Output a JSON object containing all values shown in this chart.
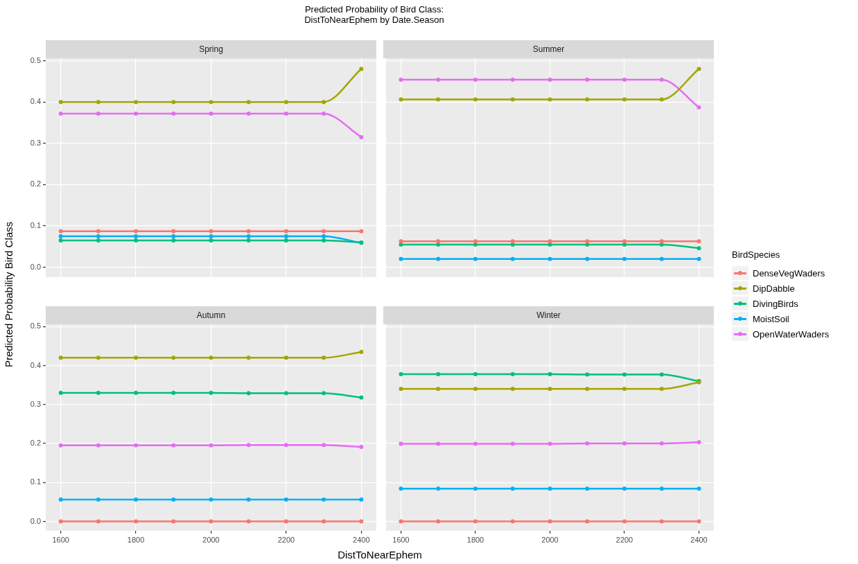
{
  "chart_data": [
    {
      "type": "line",
      "title": "Spring",
      "annotations": [
        "Predicted Probability of Bird Class:\nDistToNearEphem by Date.Season"
      ],
      "ylabel": "Predicted Probability Bird Class",
      "x": [
        1600,
        1700,
        1800,
        1900,
        2000,
        2100,
        2200,
        2300,
        2400
      ],
      "xlim": [
        1560,
        2440
      ],
      "xticks": [
        1600,
        1800,
        2000,
        2200,
        2400
      ],
      "ylim": [
        -0.024,
        0.506
      ],
      "yticks": [
        {
          "value": 0,
          "label": "0.0"
        },
        0.1,
        0.2,
        0.3,
        0.4,
        0.5
      ],
      "tick_labels": "y",
      "grid": true,
      "marker": "circle",
      "line_style": "solid",
      "series": [
        {
          "color": "#f8766d",
          "values": [
            0.087,
            0.087,
            0.087,
            0.087,
            0.087,
            0.087,
            0.087,
            0.087,
            0.087
          ]
        },
        {
          "color": "#a3a500",
          "values": [
            0.4,
            0.4,
            0.4,
            0.4,
            0.4,
            0.4,
            0.4,
            0.4,
            0.48
          ]
        },
        {
          "color": "#00bf7d",
          "values": [
            0.065,
            0.065,
            0.065,
            0.065,
            0.065,
            0.065,
            0.065,
            0.065,
            0.06
          ]
        },
        {
          "color": "#00b0f6",
          "values": [
            0.075,
            0.075,
            0.075,
            0.075,
            0.075,
            0.075,
            0.075,
            0.075,
            0.059
          ]
        },
        {
          "color": "#e76bf3",
          "values": [
            0.372,
            0.372,
            0.372,
            0.372,
            0.372,
            0.372,
            0.372,
            0.372,
            0.315
          ]
        }
      ]
    },
    {
      "type": "line",
      "title": "Summer",
      "legend": "right",
      "legend_title": "BirdSpecies",
      "x": [
        1600,
        1700,
        1800,
        1900,
        2000,
        2100,
        2200,
        2300,
        2400
      ],
      "xlim": [
        1560,
        2440
      ],
      "xticks": [
        1600,
        1800,
        2000,
        2200,
        2400
      ],
      "ylim": [
        -0.024,
        0.506
      ],
      "yticks": [
        0,
        0.1,
        0.2,
        0.3,
        0.4,
        0.5
      ],
      "tick_labels": false,
      "grid": true,
      "marker": "circle",
      "line_style": "solid",
      "series": [
        {
          "name": "DenseVegWaders",
          "color": "#f8766d",
          "values": [
            0.063,
            0.063,
            0.063,
            0.063,
            0.063,
            0.063,
            0.063,
            0.063,
            0.063
          ]
        },
        {
          "name": "DipDabble",
          "color": "#a3a500",
          "values": [
            0.406,
            0.406,
            0.406,
            0.406,
            0.406,
            0.406,
            0.406,
            0.406,
            0.48
          ]
        },
        {
          "name": "DivingBirds",
          "color": "#00bf7d",
          "values": [
            0.055,
            0.055,
            0.055,
            0.055,
            0.055,
            0.055,
            0.055,
            0.055,
            0.046
          ]
        },
        {
          "name": "MoistSoil",
          "color": "#00b0f6",
          "values": [
            0.02,
            0.02,
            0.02,
            0.02,
            0.02,
            0.02,
            0.02,
            0.02,
            0.02
          ]
        },
        {
          "name": "OpenWaterWaders",
          "color": "#e76bf3",
          "values": [
            0.454,
            0.454,
            0.454,
            0.454,
            0.454,
            0.454,
            0.454,
            0.454,
            0.387
          ]
        }
      ]
    },
    {
      "type": "line",
      "title": "Autumn",
      "xlabel": "DistToNearEphem",
      "x": [
        1600,
        1700,
        1800,
        1900,
        2000,
        2100,
        2200,
        2300,
        2400
      ],
      "xlim": [
        1560,
        2440
      ],
      "xticks": [
        1600,
        1800,
        2000,
        2200,
        2400
      ],
      "ylim": [
        -0.024,
        0.506
      ],
      "yticks": [
        {
          "value": 0,
          "label": "0.0"
        },
        0.1,
        0.2,
        0.3,
        0.4,
        0.5
      ],
      "grid": true,
      "marker": "circle",
      "line_style": "solid",
      "series": [
        {
          "color": "#f8766d",
          "values": [
            0,
            0,
            0,
            0,
            0,
            0,
            0,
            0,
            0
          ]
        },
        {
          "color": "#a3a500",
          "values": [
            0.42,
            0.42,
            0.42,
            0.42,
            0.42,
            0.42,
            0.42,
            0.42,
            0.435
          ]
        },
        {
          "color": "#00bf7d",
          "values": [
            0.33,
            0.33,
            0.33,
            0.33,
            0.33,
            0.329,
            0.329,
            0.329,
            0.318
          ]
        },
        {
          "color": "#00b0f6",
          "values": [
            0.056,
            0.056,
            0.056,
            0.056,
            0.056,
            0.056,
            0.056,
            0.056,
            0.056
          ]
        },
        {
          "color": "#e76bf3",
          "values": [
            0.195,
            0.195,
            0.195,
            0.195,
            0.195,
            0.196,
            0.196,
            0.196,
            0.191
          ]
        }
      ]
    },
    {
      "type": "line",
      "title": "Winter",
      "x": [
        1600,
        1700,
        1800,
        1900,
        2000,
        2100,
        2200,
        2300,
        2400
      ],
      "xlim": [
        1560,
        2440
      ],
      "xticks": [
        1600,
        1800,
        2000,
        2200,
        2400
      ],
      "ylim": [
        -0.024,
        0.506
      ],
      "yticks": [
        0,
        0.1,
        0.2,
        0.3,
        0.4,
        0.5
      ],
      "tick_labels": "x",
      "grid": true,
      "marker": "circle",
      "line_style": "solid",
      "series": [
        {
          "color": "#f8766d",
          "values": [
            0,
            0,
            0,
            0,
            0,
            0,
            0,
            0,
            0
          ]
        },
        {
          "color": "#a3a500",
          "values": [
            0.34,
            0.34,
            0.34,
            0.34,
            0.34,
            0.34,
            0.34,
            0.34,
            0.357
          ]
        },
        {
          "color": "#00bf7d",
          "values": [
            0.378,
            0.378,
            0.378,
            0.378,
            0.378,
            0.377,
            0.377,
            0.377,
            0.36
          ]
        },
        {
          "color": "#00b0f6",
          "values": [
            0.084,
            0.084,
            0.084,
            0.084,
            0.084,
            0.084,
            0.084,
            0.084,
            0.084
          ]
        },
        {
          "color": "#e76bf3",
          "values": [
            0.199,
            0.199,
            0.199,
            0.199,
            0.199,
            0.2,
            0.2,
            0.2,
            0.203
          ]
        }
      ]
    }
  ]
}
